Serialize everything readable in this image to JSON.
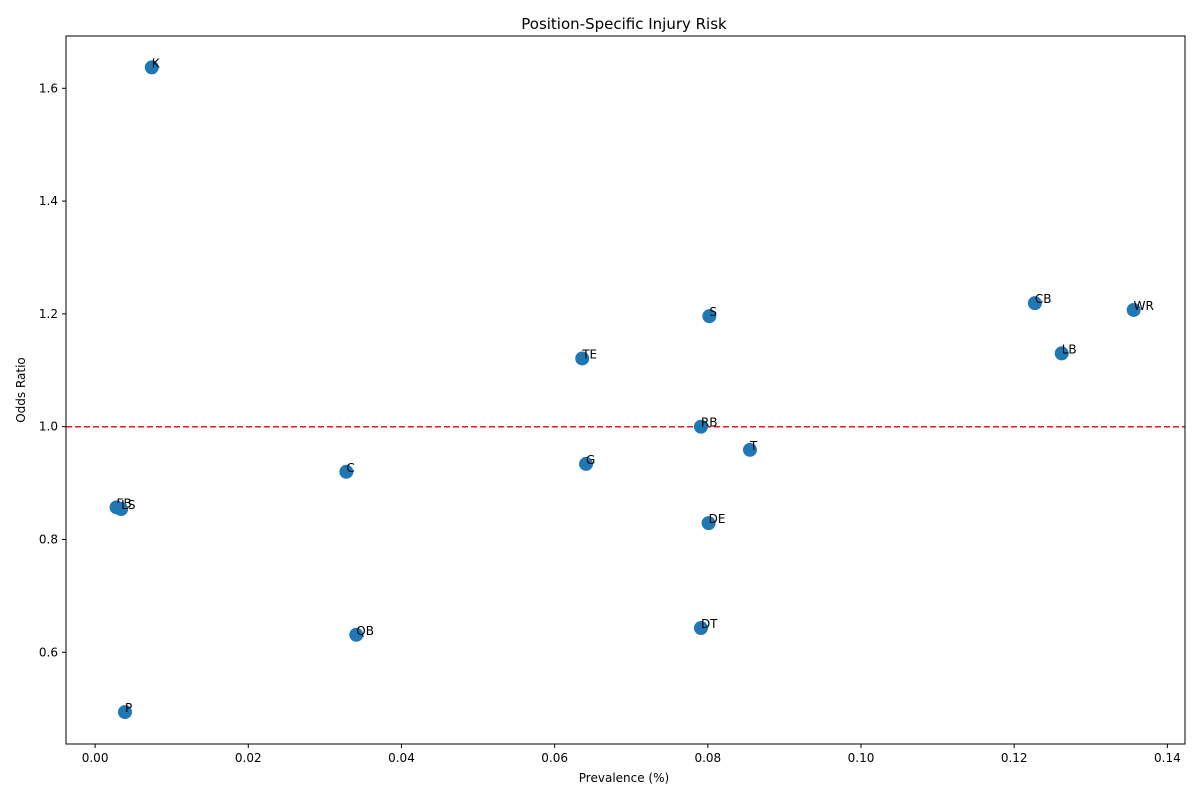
{
  "chart_data": {
    "type": "scatter",
    "title": "Position-Specific Injury Risk",
    "xlabel": "Prevalence (%)",
    "ylabel": "Odds Ratio",
    "xlim": [
      -0.0038,
      0.1423
    ],
    "ylim": [
      0.4374,
      1.6927
    ],
    "xticks": [
      0.0,
      0.02,
      0.04,
      0.06,
      0.08,
      0.1,
      0.12,
      0.14
    ],
    "xtick_labels": [
      "0.00",
      "0.02",
      "0.04",
      "0.06",
      "0.08",
      "0.10",
      "0.12",
      "0.14"
    ],
    "yticks": [
      0.6,
      0.8,
      1.0,
      1.2,
      1.4,
      1.6
    ],
    "ytick_labels": [
      "0.6",
      "0.8",
      "1.0",
      "1.2",
      "1.4",
      "1.6"
    ],
    "reference_line": {
      "y": 1.0,
      "color": "#e41a1c",
      "style": "dashed"
    },
    "grid": false,
    "marker_color": "#1f77b4",
    "points": [
      {
        "label": "K",
        "x": 0.0074,
        "y": 1.637
      },
      {
        "label": "CB",
        "x": 0.1227,
        "y": 1.219
      },
      {
        "label": "WR",
        "x": 0.1356,
        "y": 1.207
      },
      {
        "label": "S",
        "x": 0.0802,
        "y": 1.196
      },
      {
        "label": "LB",
        "x": 0.1262,
        "y": 1.13
      },
      {
        "label": "TE",
        "x": 0.0636,
        "y": 1.121
      },
      {
        "label": "RB",
        "x": 0.0791,
        "y": 1.0
      },
      {
        "label": "T",
        "x": 0.0855,
        "y": 0.959
      },
      {
        "label": "G",
        "x": 0.0641,
        "y": 0.934
      },
      {
        "label": "C",
        "x": 0.0328,
        "y": 0.92
      },
      {
        "label": "FB",
        "x": 0.0028,
        "y": 0.857
      },
      {
        "label": "LS",
        "x": 0.0034,
        "y": 0.854
      },
      {
        "label": "DE",
        "x": 0.0801,
        "y": 0.829
      },
      {
        "label": "DT",
        "x": 0.0791,
        "y": 0.643
      },
      {
        "label": "QB",
        "x": 0.0341,
        "y": 0.631
      },
      {
        "label": "P",
        "x": 0.0039,
        "y": 0.494
      }
    ]
  }
}
